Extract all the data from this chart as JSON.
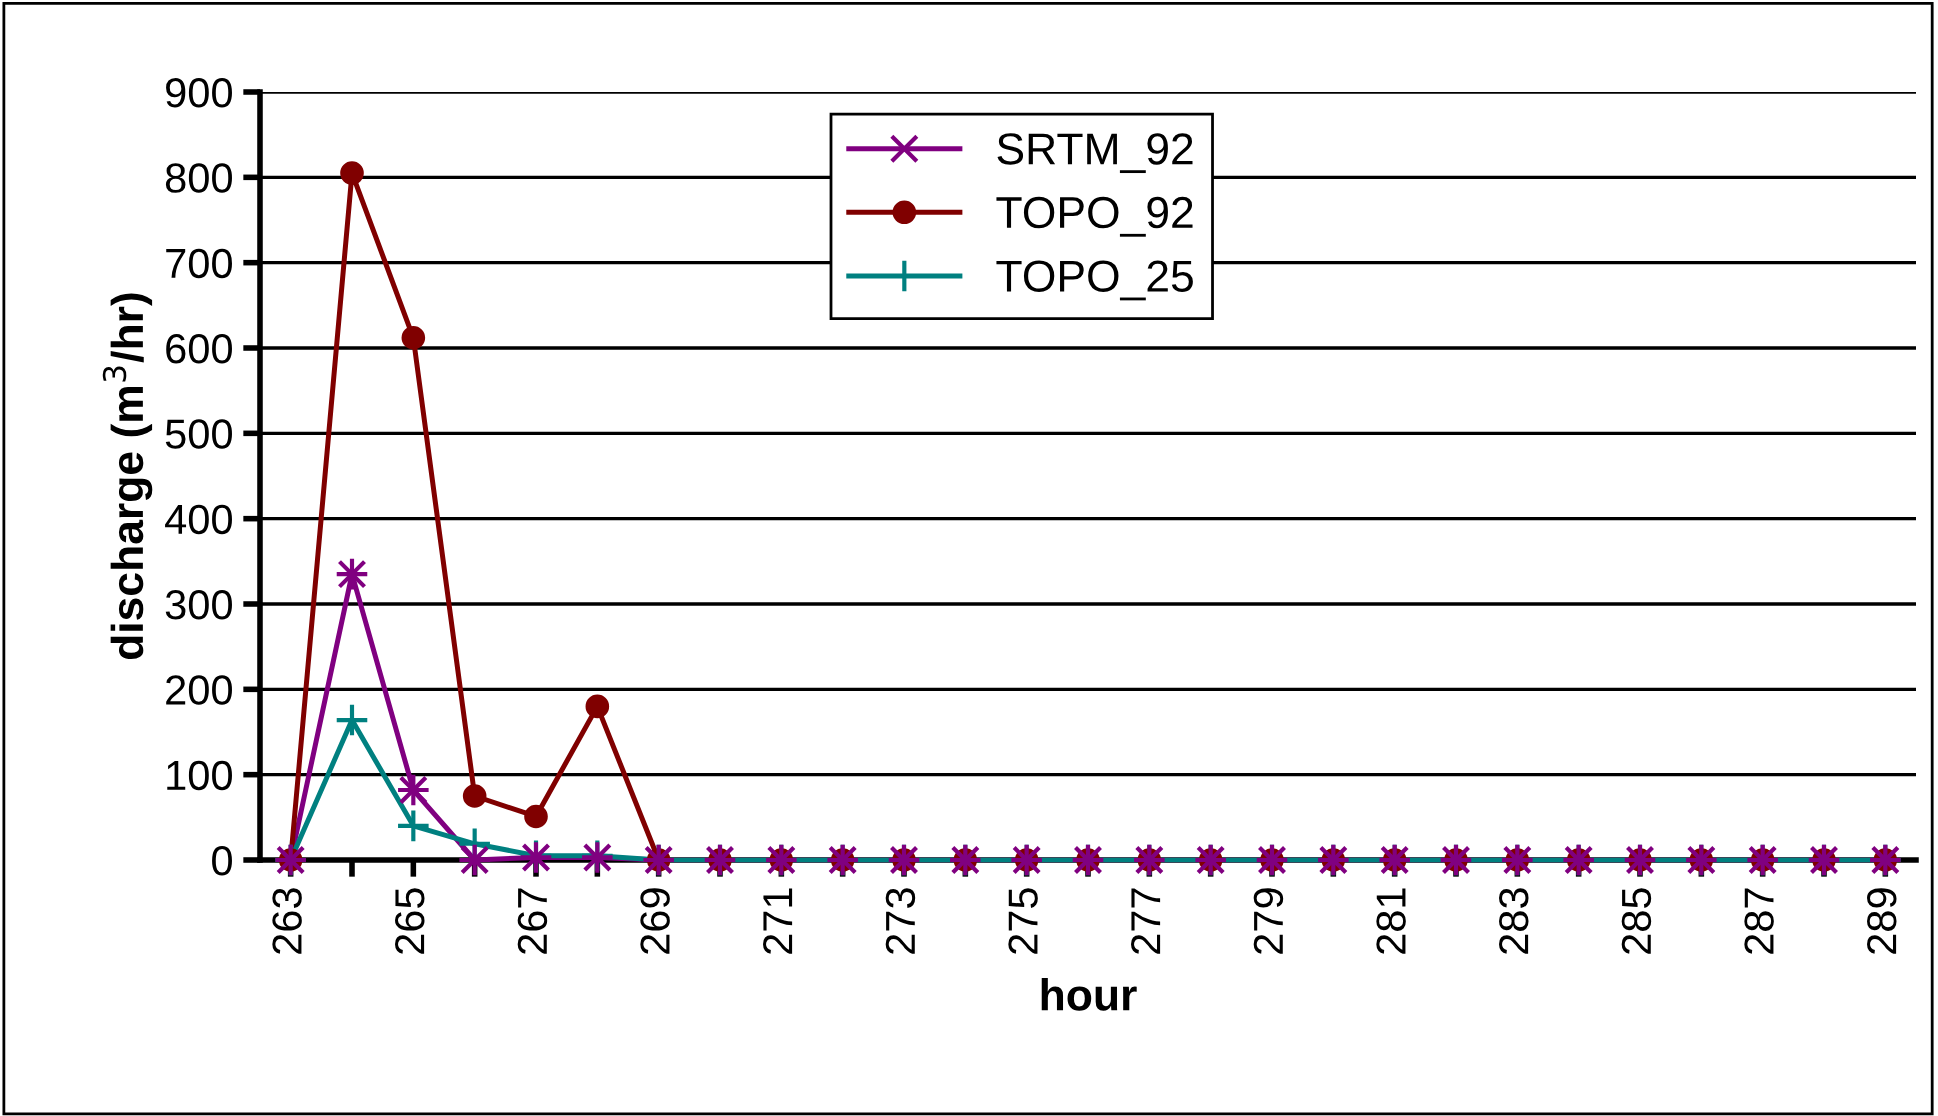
{
  "chart_data": {
    "type": "line",
    "xlabel": "hour",
    "ylabel": "discharge (m$^{3}$/hr)",
    "categories": [
      "263",
      null,
      "265",
      null,
      "267",
      null,
      "269",
      null,
      "271",
      null,
      "273",
      null,
      "275",
      null,
      "277",
      null,
      "279",
      null,
      "281",
      null,
      "283",
      null,
      "285",
      null,
      "287",
      null,
      "289"
    ],
    "series": [
      {
        "name": "SRTM_92",
        "color": "#800080",
        "marker": "cross",
        "values": [
          0,
          335,
          82,
          0,
          3,
          3,
          0,
          0,
          0,
          0,
          0,
          0,
          0,
          0,
          0,
          0,
          0,
          0,
          0,
          0,
          0,
          0,
          0,
          0,
          0,
          0,
          0
        ]
      },
      {
        "name": "TOPO_92",
        "color": "#800000",
        "marker": "circle",
        "values": [
          0,
          805,
          612,
          75,
          51,
          180,
          0,
          0,
          0,
          0,
          0,
          0,
          0,
          0,
          0,
          0,
          0,
          0,
          0,
          0,
          0,
          0,
          0,
          0,
          0,
          0,
          0
        ]
      },
      {
        "name": "TOPO_25",
        "color": "#008080",
        "marker": "plus",
        "values": [
          0,
          164,
          40,
          19,
          5,
          5,
          0,
          0,
          0,
          0,
          0,
          0,
          0,
          0,
          0,
          0,
          0,
          0,
          0,
          0,
          0,
          0,
          0,
          0,
          0,
          0,
          0
        ]
      }
    ],
    "ylim": [
      0,
      900
    ],
    "yticks": [
      0,
      100,
      200,
      300,
      400,
      500,
      600,
      700,
      800,
      900
    ],
    "grid": "y",
    "legend": "top"
  }
}
